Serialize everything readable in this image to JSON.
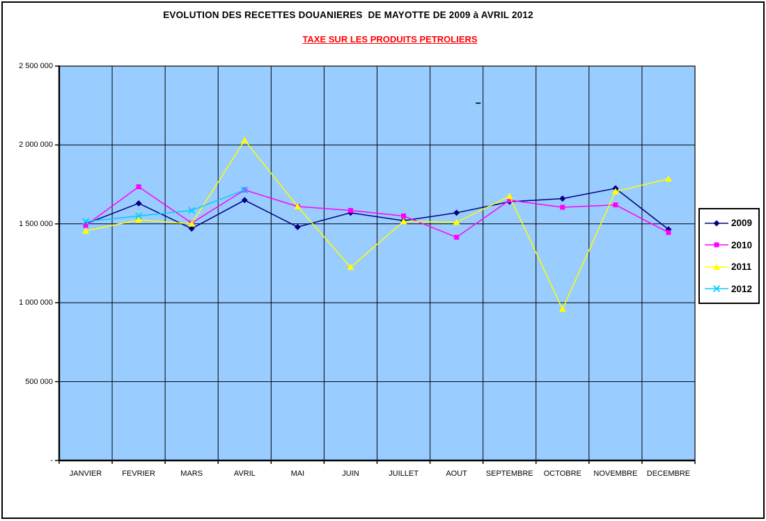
{
  "page": {
    "background": "#FFFFFF",
    "border_color": "#000000"
  },
  "chart_data": {
    "type": "line",
    "title": "EVOLUTION DES RECETTES DOUANIERES  DE MAYOTTE DE 2009 à AVRIL 2012",
    "subtitle": "TAXE SUR LES PRODUITS PETROLIERS",
    "subtitle_color": "#FF0000",
    "categories": [
      "JANVIER",
      "FEVRIER",
      "MARS",
      "AVRIL",
      "MAI",
      "JUIN",
      "JUILLET",
      "AOUT",
      "SEPTEMBRE",
      "OCTOBRE",
      "NOVEMBRE",
      "DECEMBRE"
    ],
    "y_axis": {
      "min": 0,
      "max": 2500000,
      "major_unit": 500000,
      "tick_labels": [
        "2 500 000",
        "2 000 000",
        "1 500 000",
        "1 000 000",
        "500 000",
        "-"
      ]
    },
    "series": [
      {
        "name": "2009",
        "color": "#000080",
        "marker": "diamond",
        "values": [
          1500000,
          1630000,
          1470000,
          1650000,
          1480000,
          1570000,
          1520000,
          1570000,
          1640000,
          1660000,
          1725000,
          1465000
        ]
      },
      {
        "name": "2010",
        "color": "#FF00FF",
        "marker": "square",
        "values": [
          1490000,
          1735000,
          1505000,
          1715000,
          1610000,
          1585000,
          1550000,
          1415000,
          1650000,
          1605000,
          1620000,
          1445000
        ]
      },
      {
        "name": "2011",
        "color": "#FFFF00",
        "marker": "triangle",
        "values": [
          1455000,
          1525000,
          1500000,
          2030000,
          1610000,
          1225000,
          1515000,
          1510000,
          1675000,
          960000,
          1705000,
          1785000
        ]
      },
      {
        "name": "2012",
        "color": "#00CCFF",
        "marker": "x",
        "values": [
          1515000,
          1550000,
          1585000,
          1715000,
          null,
          null,
          null,
          null,
          null,
          null,
          null,
          null
        ]
      }
    ],
    "legend_position": "right",
    "grid": true,
    "plot_bg": "#99CCFF",
    "annotations": [
      {
        "text": "-",
        "value": 2265000,
        "x_frac": 0.659
      }
    ]
  }
}
